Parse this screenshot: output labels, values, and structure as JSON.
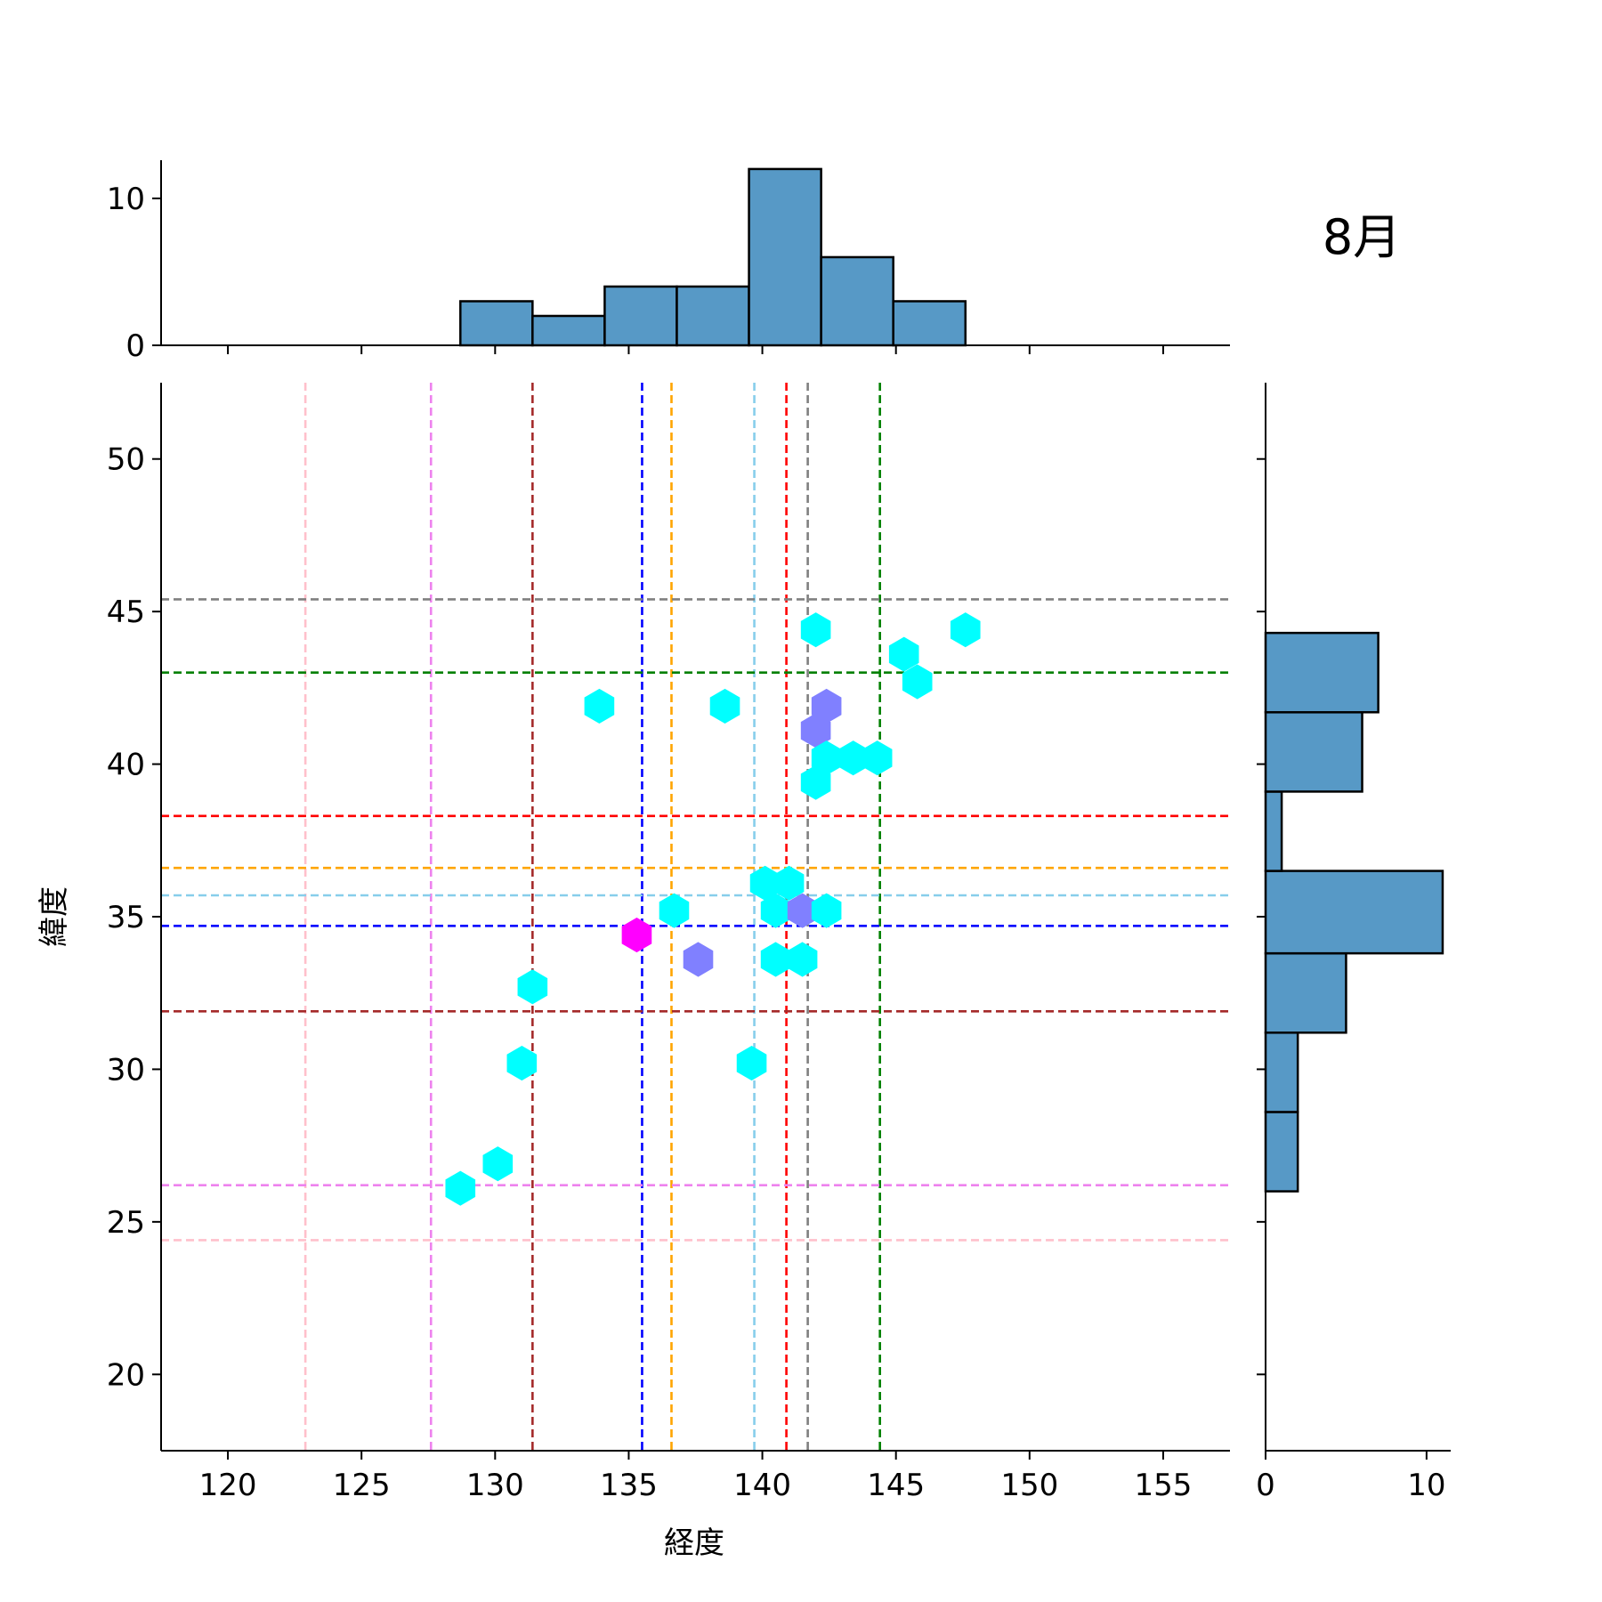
{
  "chart_data": {
    "type": "hexbin-jointplot",
    "month_label": "8月",
    "xlabel": "経度",
    "ylabel": "緯度",
    "xlim": [
      117.5,
      157.5
    ],
    "ylim": [
      17.5,
      52.5
    ],
    "x_ticks": [
      120,
      125,
      130,
      135,
      140,
      145,
      150,
      155
    ],
    "y_ticks": [
      20,
      25,
      30,
      35,
      40,
      45,
      50
    ],
    "top_hist": {
      "ylim": [
        0,
        12.6
      ],
      "y_ticks": [
        0,
        10
      ],
      "bins": [
        {
          "x0": 128.7,
          "x1": 131.4,
          "count": 3
        },
        {
          "x0": 131.4,
          "x1": 134.1,
          "count": 2
        },
        {
          "x0": 134.1,
          "x1": 136.8,
          "count": 4
        },
        {
          "x0": 136.8,
          "x1": 139.5,
          "count": 4
        },
        {
          "x0": 139.5,
          "x1": 142.2,
          "count": 12
        },
        {
          "x0": 142.2,
          "x1": 144.9,
          "count": 6
        },
        {
          "x0": 144.9,
          "x1": 147.6,
          "count": 3
        }
      ],
      "color": "#5799c6"
    },
    "right_hist": {
      "xlim": [
        0,
        11.5
      ],
      "x_ticks": [
        0,
        10
      ],
      "bins": [
        {
          "y0": 26.0,
          "y1": 28.6,
          "count": 2
        },
        {
          "y0": 28.6,
          "y1": 31.2,
          "count": 2
        },
        {
          "y0": 31.2,
          "y1": 33.8,
          "count": 5
        },
        {
          "y0": 33.8,
          "y1": 36.5,
          "count": 11
        },
        {
          "y0": 36.5,
          "y1": 39.1,
          "count": 1
        },
        {
          "y0": 39.1,
          "y1": 41.7,
          "count": 6
        },
        {
          "y0": 41.7,
          "y1": 44.3,
          "count": 7
        }
      ],
      "color": "#5799c6"
    },
    "hexbins": [
      {
        "x": 128.7,
        "y": 26.1,
        "color": "#00ffff"
      },
      {
        "x": 130.1,
        "y": 26.9,
        "color": "#00ffff"
      },
      {
        "x": 131.0,
        "y": 30.2,
        "color": "#00ffff"
      },
      {
        "x": 131.4,
        "y": 32.7,
        "color": "#00ffff"
      },
      {
        "x": 133.9,
        "y": 41.9,
        "color": "#00ffff"
      },
      {
        "x": 135.3,
        "y": 34.4,
        "color": "#ff00ff"
      },
      {
        "x": 136.7,
        "y": 35.2,
        "color": "#00ffff"
      },
      {
        "x": 137.6,
        "y": 33.6,
        "color": "#8080ff"
      },
      {
        "x": 138.6,
        "y": 41.9,
        "color": "#00ffff"
      },
      {
        "x": 139.6,
        "y": 30.2,
        "color": "#00ffff"
      },
      {
        "x": 140.1,
        "y": 36.1,
        "color": "#00ffff"
      },
      {
        "x": 140.5,
        "y": 35.2,
        "color": "#00ffff"
      },
      {
        "x": 141.0,
        "y": 36.1,
        "color": "#00ffff"
      },
      {
        "x": 140.5,
        "y": 33.6,
        "color": "#00ffff"
      },
      {
        "x": 141.5,
        "y": 33.6,
        "color": "#00ffff"
      },
      {
        "x": 141.5,
        "y": 35.2,
        "color": "#8080ff"
      },
      {
        "x": 142.4,
        "y": 35.2,
        "color": "#00ffff"
      },
      {
        "x": 142.0,
        "y": 39.4,
        "color": "#00ffff"
      },
      {
        "x": 142.0,
        "y": 41.1,
        "color": "#8080ff"
      },
      {
        "x": 142.4,
        "y": 41.9,
        "color": "#8080ff"
      },
      {
        "x": 142.4,
        "y": 40.2,
        "color": "#00ffff"
      },
      {
        "x": 143.4,
        "y": 40.2,
        "color": "#00ffff"
      },
      {
        "x": 144.3,
        "y": 40.2,
        "color": "#00ffff"
      },
      {
        "x": 142.0,
        "y": 44.4,
        "color": "#00ffff"
      },
      {
        "x": 145.3,
        "y": 43.6,
        "color": "#00ffff"
      },
      {
        "x": 145.8,
        "y": 42.7,
        "color": "#00ffff"
      },
      {
        "x": 147.6,
        "y": 44.4,
        "color": "#00ffff"
      }
    ],
    "vlines": [
      {
        "x": 122.9,
        "color": "#ffc0cb"
      },
      {
        "x": 127.6,
        "color": "#ee82ee"
      },
      {
        "x": 131.4,
        "color": "#a52a2a"
      },
      {
        "x": 135.5,
        "color": "#0000ff"
      },
      {
        "x": 136.6,
        "color": "#ffa500"
      },
      {
        "x": 139.7,
        "color": "#87ceeb"
      },
      {
        "x": 140.9,
        "color": "#ff0000"
      },
      {
        "x": 141.7,
        "color": "#808080"
      },
      {
        "x": 144.4,
        "color": "#008000"
      }
    ],
    "hlines": [
      {
        "y": 45.4,
        "color": "#808080"
      },
      {
        "y": 43.0,
        "color": "#008000"
      },
      {
        "y": 38.3,
        "color": "#ff0000"
      },
      {
        "y": 36.6,
        "color": "#ffa500"
      },
      {
        "y": 35.7,
        "color": "#87ceeb"
      },
      {
        "y": 34.7,
        "color": "#0000ff"
      },
      {
        "y": 31.9,
        "color": "#a52a2a"
      },
      {
        "y": 26.2,
        "color": "#ee82ee"
      },
      {
        "y": 24.4,
        "color": "#ffc0cb"
      }
    ]
  }
}
